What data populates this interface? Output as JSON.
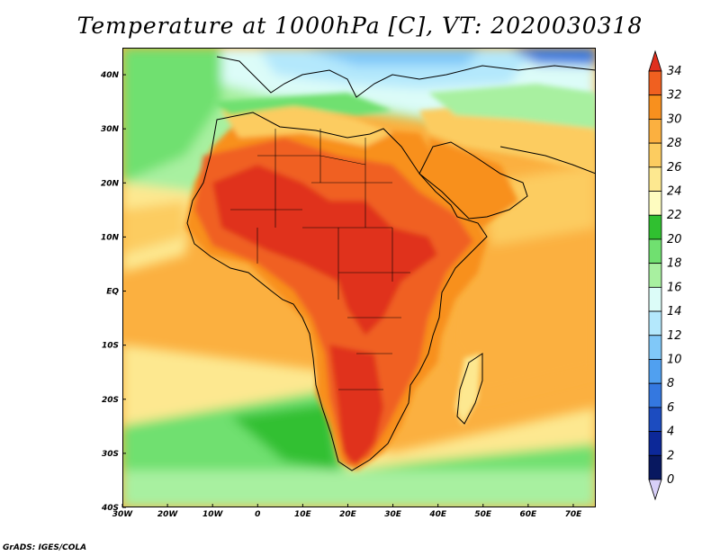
{
  "title": "Temperature at 1000hPa [C], VT: 2020030318",
  "footer": "GrADS: IGES/COLA",
  "map": {
    "lon_range": [
      -30,
      75
    ],
    "lat_range": [
      -40,
      45
    ],
    "lon_ticks": [
      "30W",
      "20W",
      "10W",
      "0",
      "10E",
      "20E",
      "30E",
      "40E",
      "50E",
      "60E",
      "70E"
    ],
    "lat_ticks": [
      "40N",
      "30N",
      "20N",
      "10N",
      "EQ",
      "10S",
      "20S",
      "30S",
      "40S"
    ]
  },
  "colorbar": {
    "labels": [
      "34",
      "32",
      "30",
      "28",
      "26",
      "24",
      "22",
      "20",
      "18",
      "16",
      "14",
      "12",
      "10",
      "8",
      "6",
      "4",
      "2",
      "0"
    ],
    "colors": [
      "#e0301e",
      "#f06020",
      "#f8901e",
      "#fbb040",
      "#fccc60",
      "#fde890",
      "#fefcc0",
      "#30c030",
      "#70e070",
      "#a8f0a0",
      "#dcfcf8",
      "#b4e8fc",
      "#80c8f8",
      "#50a0f0",
      "#3478e0",
      "#1c4cc0",
      "#0c2898",
      "#081860",
      "#d8d0f8"
    ]
  }
}
